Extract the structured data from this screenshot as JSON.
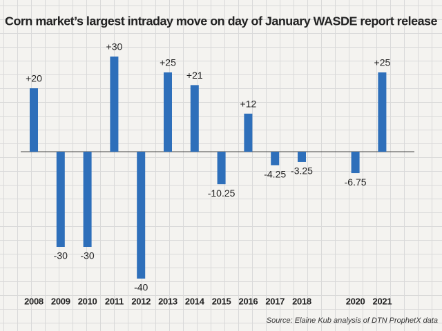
{
  "chart_data": {
    "type": "bar",
    "title": "Corn market’s largest intraday move on day of January WASDE report release",
    "source": "Source: Elaine Kub analysis of DTN ProphetX data",
    "categories": [
      "2008",
      "2009",
      "2010",
      "2011",
      "2012",
      "2013",
      "2014",
      "2015",
      "2016",
      "2017",
      "2018",
      null,
      "2020",
      "2021"
    ],
    "values": [
      20,
      -30,
      -30,
      30,
      -40,
      25,
      21,
      -10.25,
      12,
      -4.25,
      -3.25,
      null,
      -6.75,
      25
    ],
    "value_labels": [
      "+20",
      "-30",
      "-30",
      "+30",
      "-40",
      "+25",
      "+21",
      "-10.25",
      "+12",
      "-4.25",
      "-3.25",
      null,
      "-6.75",
      "+25"
    ],
    "color": "#2e6fba"
  }
}
